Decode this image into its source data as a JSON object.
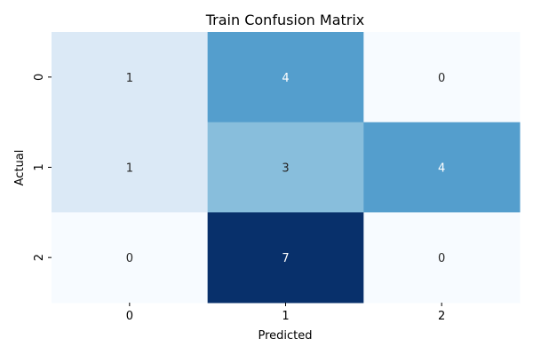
{
  "chart_data": {
    "type": "heatmap",
    "title": "Train Confusion Matrix",
    "xlabel": "Predicted",
    "ylabel": "Actual",
    "x_categories": [
      "0",
      "1",
      "2"
    ],
    "y_categories": [
      "0",
      "1",
      "2"
    ],
    "values": [
      [
        1,
        4,
        0
      ],
      [
        1,
        3,
        4
      ],
      [
        0,
        7,
        0
      ]
    ],
    "value_range": [
      0,
      7
    ],
    "colormap": "Blues",
    "colorbar": false,
    "annotations": true,
    "grid": false
  }
}
